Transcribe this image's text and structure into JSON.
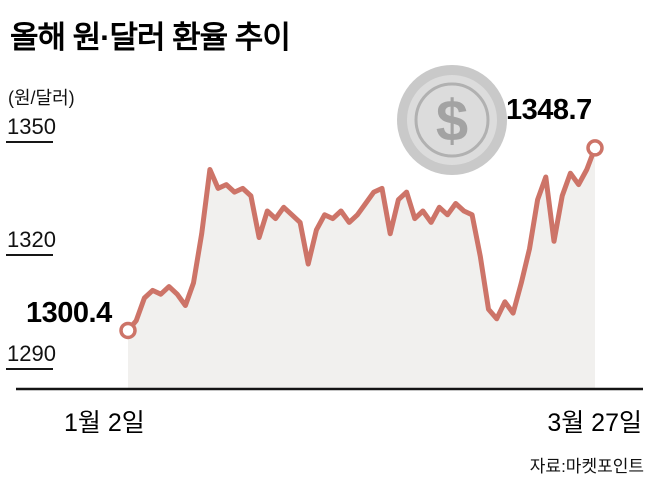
{
  "title": "올해 원·달러 환율 추이",
  "unit_label": "(원/달러)",
  "annotations": {
    "start_value": "1300.4",
    "end_value": "1348.7"
  },
  "source": "자료:마켓포인트",
  "icons": {
    "dollar_coin": "$"
  },
  "colors": {
    "line": "#cd7468",
    "area": "#f1f0ee",
    "axis": "#141414",
    "coin_outer": "#c9c9c9",
    "coin_inner": "#dcdcdc",
    "coin_ring": "#b1b1b1",
    "coin_symbol": "#a3a3a3"
  },
  "chart_data": {
    "type": "line",
    "title": "올해 원·달러 환율 추이",
    "ylabel": "(원/달러)",
    "y_ticks": [
      1350,
      1320,
      1290
    ],
    "ylim": [
      1290,
      1355
    ],
    "x_labels": [
      "1월 2일",
      "3월 27일"
    ],
    "x_start_label": "1월 2일",
    "x_end_label": "3월 27일",
    "start_value": 1300.4,
    "end_value": 1348.7,
    "legend": [],
    "grid": false,
    "values": [
      1300.4,
      1303,
      1309,
      1311,
      1310,
      1312,
      1310,
      1307,
      1313,
      1326,
      1343,
      1338,
      1339,
      1337,
      1338,
      1336,
      1325,
      1332,
      1330,
      1333,
      1331,
      1329,
      1318,
      1327,
      1331,
      1330,
      1332,
      1329,
      1331,
      1334,
      1337,
      1338,
      1326,
      1335,
      1337,
      1330,
      1332,
      1329,
      1333,
      1331,
      1334,
      1332,
      1331,
      1320,
      1306,
      1303.5,
      1308,
      1305,
      1313,
      1322,
      1335,
      1341,
      1324,
      1336,
      1342,
      1339,
      1343,
      1348.7
    ]
  }
}
